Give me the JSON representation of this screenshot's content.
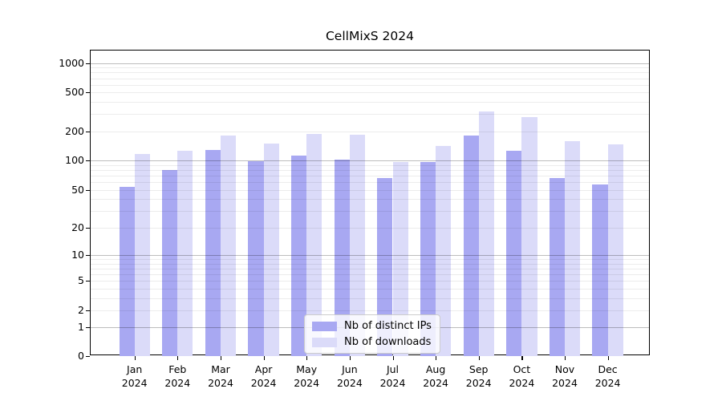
{
  "figure": {
    "title": "CellMixS 2024"
  },
  "chart_data": {
    "type": "bar",
    "title": "CellMixS 2024",
    "categories": [
      "Jan",
      "Feb",
      "Mar",
      "Apr",
      "May",
      "Jun",
      "Jul",
      "Aug",
      "Sep",
      "Oct",
      "Nov",
      "Dec"
    ],
    "year": "2024",
    "series": [
      {
        "name": "Nb of distinct IPs",
        "color": "#a8a8f2",
        "values": [
          54,
          80,
          128,
          99,
          113,
          103,
          66,
          96,
          180,
          126,
          66,
          57
        ]
      },
      {
        "name": "Nb of downloads",
        "color": "#dbdbf9",
        "values": [
          117,
          127,
          182,
          149,
          190,
          185,
          97,
          142,
          321,
          281,
          158,
          146
        ]
      }
    ],
    "xlabel": "",
    "ylabel": "",
    "yscale": "log1p",
    "yticks": [
      0,
      1,
      2,
      5,
      10,
      20,
      50,
      100,
      200,
      500,
      1000
    ],
    "ylim": [
      0,
      1300
    ],
    "grid": true,
    "gridlines_above_bars": true,
    "legend_position": "lower-center",
    "colors": {
      "major_grid": "#bdbdbd",
      "minor_grid": "#ececec",
      "axis": "#000000",
      "background": "#ffffff"
    }
  }
}
